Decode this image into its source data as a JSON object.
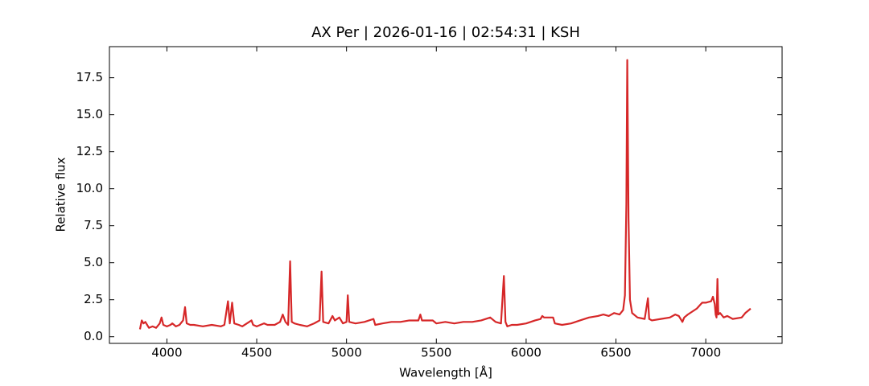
{
  "chart_data": {
    "type": "line",
    "title": "AX Per | 2026-01-16 | 02:54:31 | KSH",
    "x_label": "Wavelength [Å]",
    "y_label": "Relative flux",
    "color": "#d62728",
    "x": [
      3850,
      3860,
      3870,
      3880,
      3890,
      3900,
      3920,
      3940,
      3960,
      3970,
      3980,
      4000,
      4020,
      4030,
      4050,
      4070,
      4090,
      4101,
      4110,
      4130,
      4150,
      4200,
      4250,
      4300,
      4320,
      4340,
      4350,
      4363,
      4375,
      4400,
      4420,
      4471,
      4480,
      4500,
      4541,
      4560,
      4600,
      4630,
      4645,
      4660,
      4675,
      4686,
      4695,
      4710,
      4740,
      4780,
      4820,
      4850,
      4861,
      4870,
      4900,
      4922,
      4935,
      4960,
      4980,
      5000,
      5007,
      5015,
      5050,
      5100,
      5150,
      5160,
      5200,
      5250,
      5300,
      5350,
      5400,
      5411,
      5420,
      5480,
      5500,
      5550,
      5600,
      5650,
      5700,
      5750,
      5800,
      5830,
      5860,
      5876,
      5885,
      5895,
      5920,
      5950,
      6000,
      6050,
      6080,
      6090,
      6100,
      6150,
      6160,
      6200,
      6250,
      6300,
      6350,
      6400,
      6430,
      6460,
      6490,
      6520,
      6540,
      6550,
      6558,
      6563,
      6570,
      6578,
      6590,
      6620,
      6660,
      6678,
      6685,
      6700,
      6750,
      6800,
      6830,
      6850,
      6870,
      6880,
      6900,
      6950,
      6980,
      7000,
      7030,
      7040,
      7050,
      7055,
      7060,
      7065,
      7070,
      7080,
      7100,
      7120,
      7150,
      7200,
      7220,
      7240,
      7250
    ],
    "values": [
      0.5,
      1.1,
      0.9,
      1.0,
      0.8,
      0.6,
      0.7,
      0.6,
      0.9,
      1.3,
      0.8,
      0.7,
      0.8,
      0.9,
      0.7,
      0.8,
      1.1,
      2.0,
      0.9,
      0.8,
      0.8,
      0.7,
      0.8,
      0.7,
      0.8,
      2.4,
      0.9,
      2.3,
      0.9,
      0.8,
      0.7,
      1.1,
      0.8,
      0.7,
      0.9,
      0.8,
      0.8,
      1.0,
      1.5,
      1.0,
      0.8,
      5.1,
      1.0,
      0.9,
      0.8,
      0.7,
      0.9,
      1.1,
      4.4,
      1.0,
      0.9,
      1.4,
      1.1,
      1.3,
      0.9,
      1.0,
      2.8,
      1.0,
      0.9,
      1.0,
      1.2,
      0.8,
      0.9,
      1.0,
      1.0,
      1.1,
      1.1,
      1.5,
      1.1,
      1.1,
      0.9,
      1.0,
      0.9,
      1.0,
      1.0,
      1.1,
      1.3,
      1.0,
      0.9,
      4.1,
      1.0,
      0.7,
      0.8,
      0.8,
      0.9,
      1.1,
      1.2,
      1.4,
      1.3,
      1.3,
      0.9,
      0.8,
      0.9,
      1.1,
      1.3,
      1.4,
      1.5,
      1.4,
      1.6,
      1.5,
      1.8,
      2.8,
      9.0,
      18.7,
      8.0,
      2.5,
      1.6,
      1.3,
      1.2,
      2.6,
      1.2,
      1.1,
      1.2,
      1.3,
      1.5,
      1.4,
      1.0,
      1.3,
      1.5,
      1.9,
      2.3,
      2.3,
      2.4,
      2.7,
      2.2,
      1.5,
      1.3,
      3.9,
      1.5,
      1.6,
      1.3,
      1.4,
      1.2,
      1.3,
      1.6,
      1.8,
      1.9
    ],
    "xlim": [
      3680,
      7425
    ],
    "ylim": [
      -0.45,
      19.6
    ],
    "xticks": [
      4000,
      4500,
      5000,
      5500,
      6000,
      6500,
      7000
    ],
    "yticks": [
      {
        "value": 0,
        "label": "0.0"
      },
      2.5,
      {
        "value": 5,
        "label": "5.0"
      },
      7.5,
      {
        "value": 10,
        "label": "10.0"
      },
      12.5,
      {
        "value": 15,
        "label": "15.0"
      },
      17.5
    ]
  }
}
